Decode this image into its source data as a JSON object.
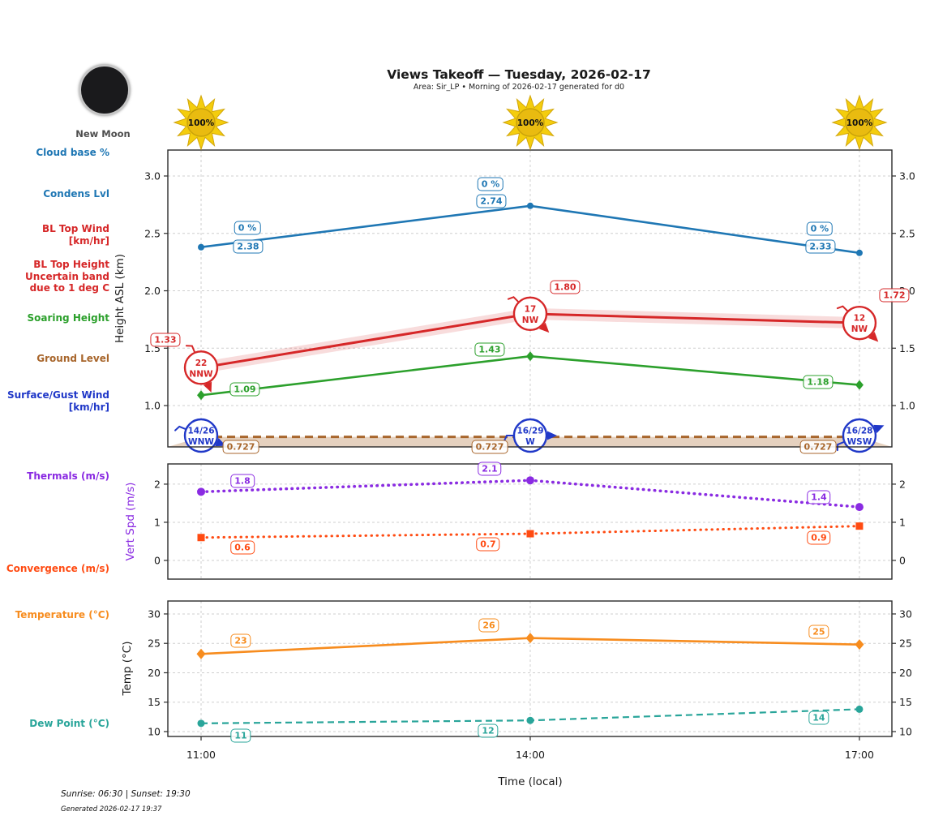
{
  "header": {
    "title": "Views Takeoff — Tuesday, 2026-02-17",
    "subtitle": "Area: Sir_LP • Morning of 2026-02-17 generated for d0",
    "moon_phase": "New Moon",
    "sun_labels": [
      "100%",
      "100%",
      "100%"
    ]
  },
  "sidebar": {
    "cloud_base": "Cloud base %",
    "condens_lvl": "Condens Lvl",
    "bl_top_wind": "BL Top Wind\n[km/hr]",
    "bl_top_height": "BL Top Height\nUncertain band\ndue to 1 deg C",
    "soaring_height": "Soaring Height",
    "ground_level": "Ground Level",
    "surface_wind": "Surface/Gust Wind\n[km/hr]",
    "thermals": "Thermals (m/s)",
    "convergence": "Convergence (m/s)",
    "temperature": "Temperature (°C)",
    "dew_point": "Dew Point (°C)"
  },
  "footer": {
    "sun_times": "Sunrise: 06:30 | Sunset: 19:30",
    "generated": "Generated 2026-02-17 19:37"
  },
  "chart_data": [
    {
      "type": "line",
      "ylabel": "Height ASL (km)",
      "x": [
        11,
        14,
        17
      ],
      "x_labels": [
        "11:00",
        "14:00",
        "17:00"
      ],
      "xlim": [
        10.697,
        17.296
      ],
      "ylim": [
        0.64,
        3.226
      ],
      "yticks": [
        3.0,
        2.5,
        2.0,
        1.5,
        1.0
      ],
      "ytick_labels": [
        "3.0",
        "2.5",
        "2.0",
        "1.5",
        "1.0"
      ],
      "grid": true,
      "series": [
        {
          "id": "condens_lvl",
          "name": "Condens Lvl",
          "color": "#1f77b4",
          "values": [
            2.38,
            2.74,
            2.33
          ],
          "point_labels": [
            "2.38",
            "2.74",
            "2.33"
          ],
          "cloud_base_labels": [
            "0 %",
            "0 %",
            "0 %"
          ]
        },
        {
          "id": "bl_top",
          "name": "BL Top Height",
          "color": "#d62728",
          "values": [
            1.33,
            1.8,
            1.72
          ],
          "point_labels": [
            "1.33",
            "1.80",
            "1.72"
          ],
          "uncertainty_band": 0.05,
          "wind_markers": [
            {
              "speed": "22",
              "dir": "NNW"
            },
            {
              "speed": "17",
              "dir": "NW"
            },
            {
              "speed": "12",
              "dir": "NW"
            }
          ]
        },
        {
          "id": "soaring",
          "name": "Soaring Height",
          "color": "#2ca02c",
          "values": [
            1.09,
            1.43,
            1.18
          ],
          "point_labels": [
            "1.09",
            "1.43",
            "1.18"
          ]
        },
        {
          "id": "ground",
          "name": "Ground Level",
          "color": "#a8662c",
          "values": [
            0.727,
            0.727,
            0.727
          ],
          "point_labels": [
            "0.727",
            "0.727",
            "0.727"
          ]
        },
        {
          "id": "surface_wind",
          "name": "Surface/Gust Wind",
          "color": "#2038c8",
          "wind_markers": [
            {
              "speed": "14/26",
              "dir": "WNW"
            },
            {
              "speed": "16/29",
              "dir": "W"
            },
            {
              "speed": "16/28",
              "dir": "WSW"
            }
          ]
        }
      ]
    },
    {
      "type": "line",
      "ylabel": "Vert Spd (m/s)",
      "x": [
        11,
        14,
        17
      ],
      "xlim": [
        10.697,
        17.296
      ],
      "ylim": [
        -0.49,
        2.53
      ],
      "yticks": [
        2,
        1,
        0
      ],
      "ytick_labels": [
        "2",
        "1",
        "0"
      ],
      "grid": true,
      "series": [
        {
          "id": "thermals",
          "name": "Thermals",
          "color": "#8a2be2",
          "values": [
            1.8,
            2.1,
            1.4
          ],
          "point_labels": [
            "1.8",
            "2.1",
            "1.4"
          ]
        },
        {
          "id": "convergence",
          "name": "Convergence",
          "color": "#ff4b12",
          "values": [
            0.6,
            0.7,
            0.9
          ],
          "point_labels": [
            "0.6",
            "0.7",
            "0.9"
          ]
        }
      ]
    },
    {
      "type": "line",
      "ylabel": "Temp (°C)",
      "xlabel": "Time (local)",
      "x": [
        11,
        14,
        17
      ],
      "x_labels": [
        "11:00",
        "14:00",
        "17:00"
      ],
      "xlim": [
        10.697,
        17.296
      ],
      "ylim": [
        9.17,
        32.2
      ],
      "yticks": [
        30,
        25,
        20,
        15,
        10
      ],
      "ytick_labels": [
        "30",
        "25",
        "20",
        "15",
        "10"
      ],
      "grid": true,
      "series": [
        {
          "id": "temperature",
          "name": "Temperature",
          "color": "#f78c1e",
          "values": [
            23.2,
            25.9,
            24.8
          ],
          "point_labels": [
            "23",
            "26",
            "25"
          ]
        },
        {
          "id": "dew_point",
          "name": "Dew Point",
          "color": "#29a59a",
          "values": [
            11.4,
            11.9,
            13.8
          ],
          "point_labels": [
            "11",
            "12",
            "14"
          ]
        }
      ]
    }
  ]
}
